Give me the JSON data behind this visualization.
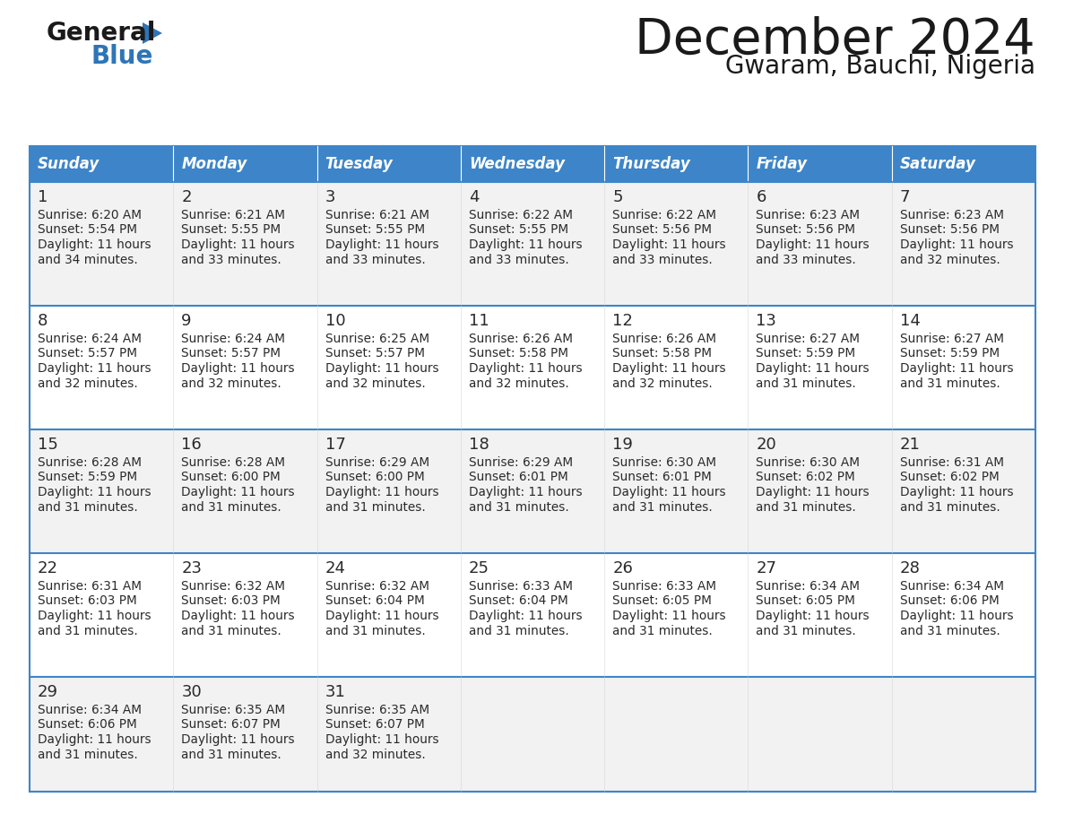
{
  "title": "December 2024",
  "subtitle": "Gwaram, Bauchi, Nigeria",
  "header_color": "#3D85C8",
  "header_text_color": "#FFFFFF",
  "cell_bg_even": "#F2F2F2",
  "cell_bg_odd": "#FFFFFF",
  "border_color": "#3D85C8",
  "text_color": "#2A2A2A",
  "days_of_week": [
    "Sunday",
    "Monday",
    "Tuesday",
    "Wednesday",
    "Thursday",
    "Friday",
    "Saturday"
  ],
  "calendar_data": [
    [
      {
        "day": 1,
        "sunrise": "6:20 AM",
        "sunset": "5:54 PM",
        "daylight": "11 hours and 34 minutes."
      },
      {
        "day": 2,
        "sunrise": "6:21 AM",
        "sunset": "5:55 PM",
        "daylight": "11 hours and 33 minutes."
      },
      {
        "day": 3,
        "sunrise": "6:21 AM",
        "sunset": "5:55 PM",
        "daylight": "11 hours and 33 minutes."
      },
      {
        "day": 4,
        "sunrise": "6:22 AM",
        "sunset": "5:55 PM",
        "daylight": "11 hours and 33 minutes."
      },
      {
        "day": 5,
        "sunrise": "6:22 AM",
        "sunset": "5:56 PM",
        "daylight": "11 hours and 33 minutes."
      },
      {
        "day": 6,
        "sunrise": "6:23 AM",
        "sunset": "5:56 PM",
        "daylight": "11 hours and 33 minutes."
      },
      {
        "day": 7,
        "sunrise": "6:23 AM",
        "sunset": "5:56 PM",
        "daylight": "11 hours and 32 minutes."
      }
    ],
    [
      {
        "day": 8,
        "sunrise": "6:24 AM",
        "sunset": "5:57 PM",
        "daylight": "11 hours and 32 minutes."
      },
      {
        "day": 9,
        "sunrise": "6:24 AM",
        "sunset": "5:57 PM",
        "daylight": "11 hours and 32 minutes."
      },
      {
        "day": 10,
        "sunrise": "6:25 AM",
        "sunset": "5:57 PM",
        "daylight": "11 hours and 32 minutes."
      },
      {
        "day": 11,
        "sunrise": "6:26 AM",
        "sunset": "5:58 PM",
        "daylight": "11 hours and 32 minutes."
      },
      {
        "day": 12,
        "sunrise": "6:26 AM",
        "sunset": "5:58 PM",
        "daylight": "11 hours and 32 minutes."
      },
      {
        "day": 13,
        "sunrise": "6:27 AM",
        "sunset": "5:59 PM",
        "daylight": "11 hours and 31 minutes."
      },
      {
        "day": 14,
        "sunrise": "6:27 AM",
        "sunset": "5:59 PM",
        "daylight": "11 hours and 31 minutes."
      }
    ],
    [
      {
        "day": 15,
        "sunrise": "6:28 AM",
        "sunset": "5:59 PM",
        "daylight": "11 hours and 31 minutes."
      },
      {
        "day": 16,
        "sunrise": "6:28 AM",
        "sunset": "6:00 PM",
        "daylight": "11 hours and 31 minutes."
      },
      {
        "day": 17,
        "sunrise": "6:29 AM",
        "sunset": "6:00 PM",
        "daylight": "11 hours and 31 minutes."
      },
      {
        "day": 18,
        "sunrise": "6:29 AM",
        "sunset": "6:01 PM",
        "daylight": "11 hours and 31 minutes."
      },
      {
        "day": 19,
        "sunrise": "6:30 AM",
        "sunset": "6:01 PM",
        "daylight": "11 hours and 31 minutes."
      },
      {
        "day": 20,
        "sunrise": "6:30 AM",
        "sunset": "6:02 PM",
        "daylight": "11 hours and 31 minutes."
      },
      {
        "day": 21,
        "sunrise": "6:31 AM",
        "sunset": "6:02 PM",
        "daylight": "11 hours and 31 minutes."
      }
    ],
    [
      {
        "day": 22,
        "sunrise": "6:31 AM",
        "sunset": "6:03 PM",
        "daylight": "11 hours and 31 minutes."
      },
      {
        "day": 23,
        "sunrise": "6:32 AM",
        "sunset": "6:03 PM",
        "daylight": "11 hours and 31 minutes."
      },
      {
        "day": 24,
        "sunrise": "6:32 AM",
        "sunset": "6:04 PM",
        "daylight": "11 hours and 31 minutes."
      },
      {
        "day": 25,
        "sunrise": "6:33 AM",
        "sunset": "6:04 PM",
        "daylight": "11 hours and 31 minutes."
      },
      {
        "day": 26,
        "sunrise": "6:33 AM",
        "sunset": "6:05 PM",
        "daylight": "11 hours and 31 minutes."
      },
      {
        "day": 27,
        "sunrise": "6:34 AM",
        "sunset": "6:05 PM",
        "daylight": "11 hours and 31 minutes."
      },
      {
        "day": 28,
        "sunrise": "6:34 AM",
        "sunset": "6:06 PM",
        "daylight": "11 hours and 31 minutes."
      }
    ],
    [
      {
        "day": 29,
        "sunrise": "6:34 AM",
        "sunset": "6:06 PM",
        "daylight": "11 hours and 31 minutes."
      },
      {
        "day": 30,
        "sunrise": "6:35 AM",
        "sunset": "6:07 PM",
        "daylight": "11 hours and 31 minutes."
      },
      {
        "day": 31,
        "sunrise": "6:35 AM",
        "sunset": "6:07 PM",
        "daylight": "11 hours and 32 minutes."
      },
      null,
      null,
      null,
      null
    ]
  ],
  "logo_general_color": "#1A1A1A",
  "logo_blue_color": "#2E75B6",
  "logo_triangle_color": "#2E75B6",
  "title_color": "#1A1A1A",
  "subtitle_color": "#1A1A1A",
  "fig_width": 11.88,
  "fig_height": 9.18,
  "dpi": 100
}
